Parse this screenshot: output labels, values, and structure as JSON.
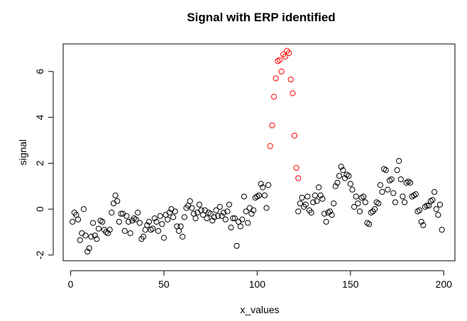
{
  "chart_data": {
    "type": "scatter",
    "title": "Signal with ERP identified",
    "xlabel": "x_values",
    "ylabel": "signal",
    "xlim": [
      -4,
      206
    ],
    "ylim": [
      -2.25,
      7.2
    ],
    "xticks": [
      0,
      50,
      100,
      150,
      200
    ],
    "yticks": [
      -2,
      0,
      2,
      4,
      6
    ],
    "grid": false,
    "colors": {
      "normal": "#000000",
      "erp": "#ff0000"
    },
    "series": [
      {
        "color": "#000000",
        "points": [
          [
            1,
            -0.55
          ],
          [
            2,
            -0.15
          ],
          [
            3,
            -0.25
          ],
          [
            4,
            -0.45
          ],
          [
            5,
            -1.35
          ],
          [
            6,
            -1.05
          ],
          [
            7,
            0.0
          ],
          [
            8,
            -1.15
          ],
          [
            9,
            -1.85
          ],
          [
            10,
            -1.7
          ],
          [
            11,
            -1.2
          ],
          [
            12,
            -0.6
          ],
          [
            13,
            -1.15
          ],
          [
            14,
            -1.3
          ],
          [
            15,
            -0.85
          ],
          [
            16,
            -0.5
          ],
          [
            17,
            -0.55
          ],
          [
            18,
            -0.9
          ],
          [
            19,
            -1.0
          ],
          [
            20,
            -1.05
          ],
          [
            21,
            -0.9
          ],
          [
            22,
            -0.15
          ],
          [
            23,
            0.25
          ],
          [
            24,
            0.6
          ],
          [
            25,
            0.35
          ],
          [
            26,
            -0.55
          ],
          [
            27,
            -0.2
          ],
          [
            28,
            -0.2
          ],
          [
            29,
            -0.95
          ],
          [
            30,
            -0.3
          ],
          [
            31,
            -0.55
          ],
          [
            32,
            -1.05
          ],
          [
            33,
            -0.5
          ],
          [
            34,
            -0.4
          ],
          [
            35,
            -0.45
          ],
          [
            36,
            -0.15
          ],
          [
            37,
            -0.6
          ],
          [
            38,
            -1.3
          ],
          [
            39,
            -1.2
          ],
          [
            40,
            -0.9
          ],
          [
            41,
            -0.7
          ],
          [
            42,
            -0.55
          ],
          [
            43,
            -0.9
          ],
          [
            44,
            -0.85
          ],
          [
            45,
            -0.4
          ],
          [
            46,
            -0.55
          ],
          [
            47,
            -0.95
          ],
          [
            48,
            -0.3
          ],
          [
            49,
            -0.65
          ],
          [
            50,
            -1.25
          ],
          [
            51,
            -0.25
          ],
          [
            52,
            -0.45
          ],
          [
            53,
            -0.15
          ],
          [
            54,
            0.0
          ],
          [
            55,
            -0.35
          ],
          [
            56,
            -0.1
          ],
          [
            57,
            -0.75
          ],
          [
            58,
            -0.95
          ],
          [
            59,
            -0.75
          ],
          [
            60,
            -1.2
          ],
          [
            61,
            -0.35
          ],
          [
            62,
            0.05
          ],
          [
            63,
            0.15
          ],
          [
            64,
            0.35
          ],
          [
            65,
            0.05
          ],
          [
            66,
            -0.2
          ],
          [
            67,
            -0.4
          ],
          [
            68,
            -0.15
          ],
          [
            69,
            0.2
          ],
          [
            70,
            -0.05
          ],
          [
            71,
            -0.25
          ],
          [
            72,
            -0.05
          ],
          [
            73,
            -0.4
          ],
          [
            74,
            -0.15
          ],
          [
            75,
            -0.2
          ],
          [
            76,
            -0.5
          ],
          [
            77,
            -0.35
          ],
          [
            78,
            -0.05
          ],
          [
            79,
            -0.3
          ],
          [
            80,
            0.1
          ],
          [
            81,
            -0.3
          ],
          [
            82,
            -0.15
          ],
          [
            83,
            -0.45
          ],
          [
            84,
            -0.1
          ],
          [
            85,
            0.2
          ],
          [
            86,
            -0.8
          ],
          [
            87,
            -0.4
          ],
          [
            88,
            -0.4
          ],
          [
            89,
            -1.6
          ],
          [
            90,
            -0.55
          ],
          [
            91,
            -0.75
          ],
          [
            92,
            -0.45
          ],
          [
            93,
            0.55
          ],
          [
            94,
            -0.1
          ],
          [
            95,
            -0.6
          ],
          [
            96,
            0.05
          ],
          [
            97,
            -0.2
          ],
          [
            98,
            -0.05
          ],
          [
            99,
            0.5
          ],
          [
            100,
            0.55
          ],
          [
            101,
            0.6
          ],
          [
            102,
            1.1
          ],
          [
            103,
            0.95
          ],
          [
            104,
            0.6
          ],
          [
            105,
            0.05
          ],
          [
            106,
            1.05
          ],
          [
            122,
            -0.1
          ],
          [
            123,
            0.25
          ],
          [
            124,
            0.5
          ],
          [
            125,
            0.1
          ],
          [
            126,
            0.2
          ],
          [
            127,
            0.55
          ],
          [
            128,
            -0.05
          ],
          [
            129,
            -0.15
          ],
          [
            130,
            0.3
          ],
          [
            131,
            0.6
          ],
          [
            132,
            0.35
          ],
          [
            133,
            0.95
          ],
          [
            134,
            0.6
          ],
          [
            135,
            0.45
          ],
          [
            136,
            -0.2
          ],
          [
            137,
            -0.55
          ],
          [
            138,
            -0.15
          ],
          [
            139,
            -0.1
          ],
          [
            140,
            -0.25
          ],
          [
            141,
            0.25
          ],
          [
            142,
            1.0
          ],
          [
            143,
            1.15
          ],
          [
            144,
            1.45
          ],
          [
            145,
            1.85
          ],
          [
            146,
            1.7
          ],
          [
            147,
            1.35
          ],
          [
            148,
            1.5
          ],
          [
            149,
            1.45
          ],
          [
            150,
            1.1
          ],
          [
            151,
            0.85
          ],
          [
            152,
            0.1
          ],
          [
            153,
            0.55
          ],
          [
            154,
            0.25
          ],
          [
            155,
            -0.1
          ],
          [
            156,
            0.5
          ],
          [
            157,
            0.55
          ],
          [
            158,
            0.3
          ],
          [
            159,
            -0.6
          ],
          [
            160,
            -0.65
          ],
          [
            161,
            -0.15
          ],
          [
            162,
            -0.1
          ],
          [
            163,
            0.0
          ],
          [
            164,
            0.3
          ],
          [
            165,
            0.25
          ],
          [
            166,
            1.05
          ],
          [
            167,
            0.75
          ],
          [
            168,
            1.75
          ],
          [
            169,
            1.7
          ],
          [
            170,
            0.85
          ],
          [
            171,
            1.25
          ],
          [
            172,
            1.3
          ],
          [
            173,
            0.7
          ],
          [
            174,
            0.3
          ],
          [
            175,
            1.7
          ],
          [
            176,
            2.1
          ],
          [
            177,
            1.3
          ],
          [
            178,
            0.55
          ],
          [
            179,
            0.3
          ],
          [
            180,
            1.15
          ],
          [
            181,
            1.2
          ],
          [
            182,
            1.15
          ],
          [
            183,
            0.55
          ],
          [
            184,
            0.6
          ],
          [
            185,
            0.65
          ],
          [
            186,
            -0.1
          ],
          [
            187,
            -0.05
          ],
          [
            188,
            -0.55
          ],
          [
            189,
            -0.7
          ],
          [
            190,
            0.1
          ],
          [
            191,
            0.15
          ],
          [
            192,
            0.15
          ],
          [
            193,
            0.35
          ],
          [
            194,
            0.4
          ],
          [
            195,
            0.75
          ],
          [
            196,
            0.0
          ],
          [
            197,
            -0.25
          ],
          [
            198,
            0.2
          ],
          [
            199,
            -0.9
          ]
        ]
      },
      {
        "color": "#ff0000",
        "points": [
          [
            107,
            2.75
          ],
          [
            108,
            3.65
          ],
          [
            109,
            4.9
          ],
          [
            110,
            5.7
          ],
          [
            111,
            6.45
          ],
          [
            112,
            6.5
          ],
          [
            113,
            6.0
          ],
          [
            114,
            6.75
          ],
          [
            115,
            6.65
          ],
          [
            116,
            6.9
          ],
          [
            117,
            6.8
          ],
          [
            118,
            5.65
          ],
          [
            119,
            5.05
          ],
          [
            120,
            3.2
          ],
          [
            121,
            1.8
          ],
          [
            122,
            1.35
          ]
        ]
      }
    ]
  }
}
